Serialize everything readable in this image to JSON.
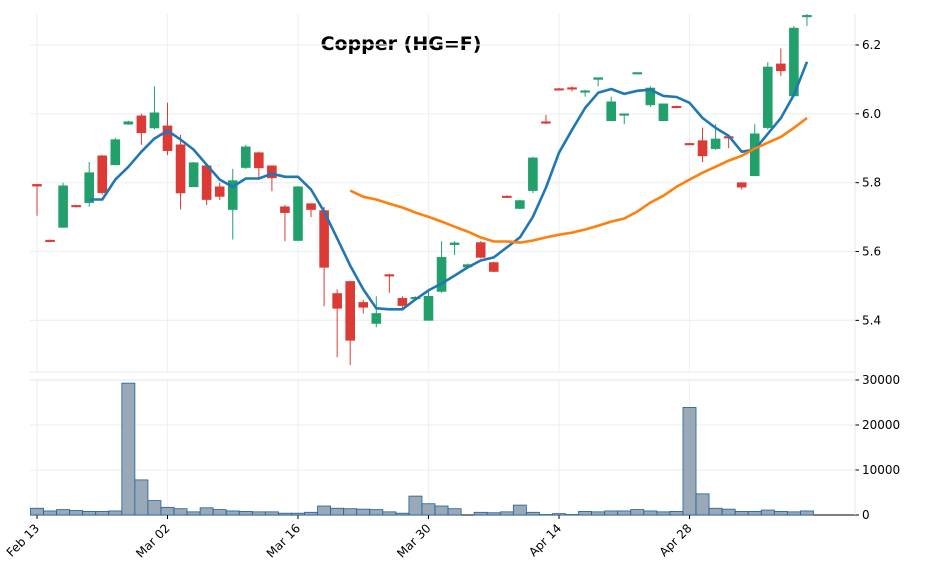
{
  "chart_data": {
    "type": "candlestick",
    "title": "Copper (HG=F)",
    "categories": [
      "Feb 13",
      null,
      null,
      null,
      null,
      null,
      null,
      null,
      null,
      null,
      "Mar 02",
      null,
      null,
      null,
      null,
      null,
      null,
      null,
      null,
      null,
      "Mar 16",
      null,
      null,
      null,
      null,
      null,
      null,
      null,
      null,
      null,
      "Mar 30",
      null,
      null,
      null,
      null,
      null,
      null,
      null,
      null,
      null,
      "Apr 14",
      null,
      null,
      null,
      null,
      null,
      null,
      null,
      null,
      null,
      "Apr 28",
      null,
      null,
      null,
      null,
      null,
      null,
      null,
      null,
      null
    ],
    "open": [
      5.795,
      5.633,
      5.67,
      5.734,
      5.742,
      5.878,
      5.852,
      5.97,
      5.994,
      5.959,
      5.965,
      5.91,
      5.788,
      5.849,
      5.788,
      5.722,
      5.844,
      5.887,
      5.849,
      5.73,
      5.632,
      5.739,
      5.719,
      5.478,
      5.513,
      5.452,
      5.391,
      5.533,
      5.464,
      5.465,
      5.4,
      5.484,
      5.62,
      5.555,
      5.626,
      5.568,
      5.761,
      5.725,
      5.777,
      5.977,
      6.073,
      6.076,
      6.064,
      6.1,
      5.98,
      5.998,
      6.117,
      6.026,
      5.98,
      6.022,
      5.914,
      5.922,
      5.899,
      5.934,
      5.8,
      5.82,
      5.96,
      6.145,
      6.052,
      6.282
    ],
    "high": [
      5.797,
      5.635,
      5.8,
      5.736,
      5.86,
      5.88,
      5.93,
      5.98,
      6.0,
      6.08,
      6.032,
      5.939,
      5.86,
      5.855,
      5.8,
      5.84,
      5.91,
      5.89,
      5.85,
      5.735,
      5.79,
      5.74,
      5.73,
      5.49,
      5.515,
      5.46,
      5.47,
      5.535,
      5.47,
      5.47,
      5.49,
      5.63,
      5.63,
      5.565,
      5.63,
      5.57,
      5.763,
      5.75,
      5.875,
      5.997,
      6.075,
      6.08,
      6.07,
      6.105,
      6.05,
      6.0,
      6.12,
      6.08,
      6.03,
      6.024,
      5.916,
      5.96,
      5.97,
      5.935,
      5.8,
      5.97,
      6.15,
      6.19,
      6.255,
      6.29
    ],
    "low": [
      5.704,
      5.631,
      5.67,
      5.728,
      5.73,
      5.765,
      5.85,
      5.968,
      5.91,
      5.955,
      5.88,
      5.722,
      5.788,
      5.735,
      5.75,
      5.635,
      5.84,
      5.81,
      5.775,
      5.63,
      5.63,
      5.7,
      5.441,
      5.293,
      5.27,
      5.42,
      5.38,
      5.48,
      5.43,
      5.46,
      5.4,
      5.48,
      5.59,
      5.55,
      5.58,
      5.54,
      5.756,
      5.723,
      5.77,
      5.97,
      6.068,
      6.065,
      6.05,
      6.08,
      5.98,
      5.97,
      6.115,
      6.02,
      5.98,
      6.016,
      5.91,
      5.86,
      5.895,
      5.9,
      5.78,
      5.82,
      5.955,
      6.11,
      6.05,
      6.255
    ],
    "close": [
      5.79,
      5.632,
      5.791,
      5.73,
      5.829,
      5.771,
      5.925,
      5.977,
      5.945,
      6.003,
      5.893,
      5.77,
      5.858,
      5.751,
      5.76,
      5.806,
      5.904,
      5.843,
      5.814,
      5.713,
      5.788,
      5.722,
      5.554,
      5.435,
      5.342,
      5.438,
      5.42,
      5.53,
      5.443,
      5.467,
      5.47,
      5.583,
      5.625,
      5.562,
      5.583,
      5.542,
      5.758,
      5.748,
      5.872,
      5.974,
      6.07,
      6.072,
      6.067,
      6.105,
      6.035,
      6.0,
      6.12,
      6.075,
      6.029,
      6.018,
      5.912,
      5.878,
      5.927,
      5.93,
      5.787,
      5.942,
      6.136,
      6.125,
      6.249,
      6.286
    ],
    "up_color": "#22a06b",
    "down_color": "#db3b34",
    "moving_averages": [
      {
        "color": "#1f77b4",
        "values": [
          null,
          null,
          null,
          null,
          5.751,
          5.751,
          5.809,
          5.846,
          5.89,
          5.928,
          5.951,
          5.925,
          5.896,
          5.852,
          5.809,
          5.788,
          5.812,
          5.812,
          5.826,
          5.817,
          5.817,
          5.78,
          5.716,
          5.638,
          5.559,
          5.49,
          5.435,
          5.432,
          5.432,
          5.461,
          5.487,
          5.507,
          5.53,
          5.554,
          5.574,
          5.583,
          5.612,
          5.641,
          5.701,
          5.786,
          5.887,
          5.954,
          6.017,
          6.061,
          6.072,
          6.058,
          6.067,
          6.07,
          6.052,
          6.049,
          6.032,
          5.988,
          5.959,
          5.936,
          5.89,
          5.896,
          5.942,
          5.988,
          6.055,
          6.151
        ]
      },
      {
        "color": "#ff7f0e",
        "values": [
          null,
          null,
          null,
          null,
          null,
          null,
          null,
          null,
          null,
          null,
          null,
          null,
          null,
          null,
          null,
          null,
          null,
          null,
          null,
          null,
          null,
          null,
          null,
          null,
          5.777,
          5.759,
          5.751,
          5.739,
          5.728,
          5.713,
          5.701,
          5.687,
          5.672,
          5.658,
          5.641,
          5.629,
          5.629,
          5.626,
          5.632,
          5.641,
          5.649,
          5.655,
          5.664,
          5.675,
          5.687,
          5.696,
          5.716,
          5.742,
          5.762,
          5.788,
          5.809,
          5.829,
          5.846,
          5.864,
          5.878,
          5.899,
          5.916,
          5.933,
          5.959,
          5.988
        ]
      }
    ],
    "ylim": [
      5.25,
      6.29
    ],
    "yticks": [
      5.4,
      5.6,
      5.8,
      {
        "value": 6,
        "label": "6.0"
      },
      6.2
    ],
    "grid": true,
    "volume": {
      "color": "#9aa9b8",
      "edge_color": "#1f5f9a",
      "values": [
        1500,
        900,
        1200,
        1000,
        800,
        800,
        900,
        29300,
        7800,
        3200,
        1700,
        1400,
        700,
        1600,
        1200,
        900,
        800,
        700,
        700,
        400,
        400,
        600,
        2000,
        1500,
        1400,
        1300,
        1200,
        700,
        400,
        4200,
        2500,
        2000,
        1400,
        null,
        600,
        500,
        700,
        2200,
        600,
        100,
        300,
        100,
        800,
        700,
        900,
        900,
        1200,
        900,
        700,
        800,
        23900,
        4700,
        1500,
        1300,
        800,
        800,
        1100,
        800,
        700,
        900
      ],
      "ylim": [
        0,
        30000
      ],
      "yticks": [
        0,
        10000,
        20000,
        30000
      ]
    }
  }
}
